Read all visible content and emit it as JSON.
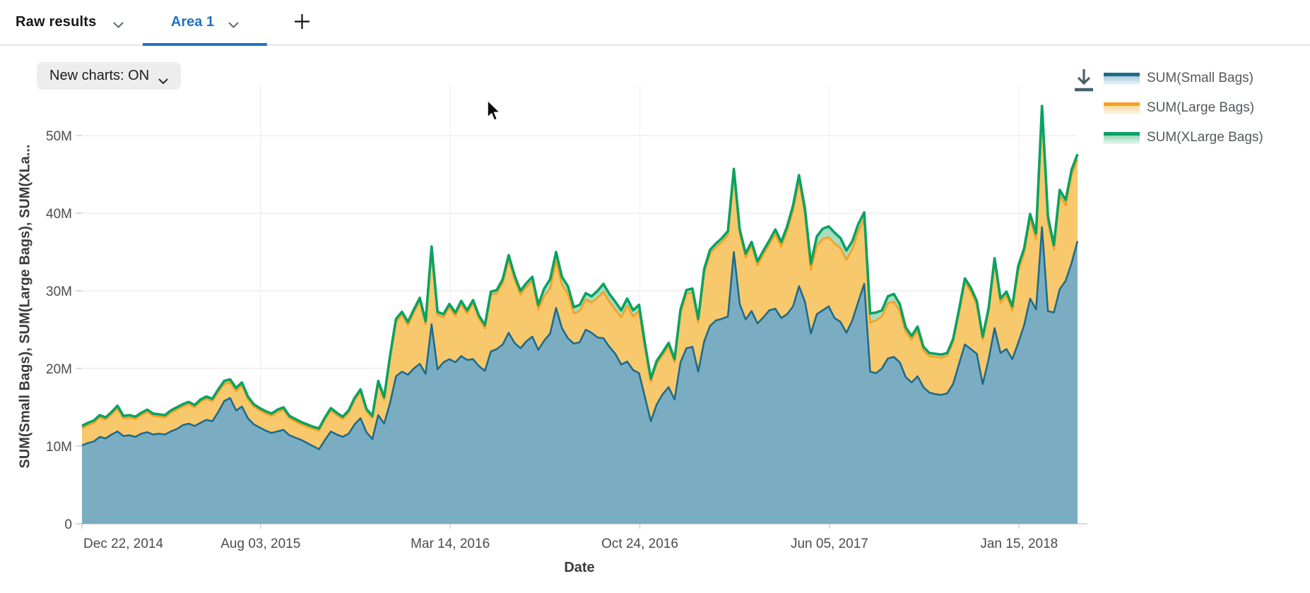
{
  "tabs": {
    "raw_results_label": "Raw results",
    "area1_label": "Area 1"
  },
  "toolbar": {
    "new_charts_label": "New charts: ON"
  },
  "icons": {
    "download": "download-icon",
    "add_tab": "plus-icon",
    "chevron": "chevron-down-icon"
  },
  "colors": {
    "accent_blue": "#2173c4",
    "grid": "#e9eaeb",
    "grid_vertical": "#f0f0f0",
    "axis_line": "#cdcdcd",
    "tick_text": "#4c4c4c",
    "axis_title": "#3b3b3b",
    "legend_text": "#55585b",
    "download_icon": "#46606d"
  },
  "chart_data": {
    "type": "area",
    "stacked": true,
    "xlabel": "Date",
    "ylabel": "SUM(Small Bags), SUM(Large Bags), SUM(XLa...",
    "unit": "millions",
    "ylim": [
      0,
      56.5
    ],
    "grid": true,
    "legend_position": "top-right",
    "y_ticks": [
      {
        "v": 0,
        "label": "0"
      },
      {
        "v": 10,
        "label": "10M"
      },
      {
        "v": 20,
        "label": "20M"
      },
      {
        "v": 30,
        "label": "30M"
      },
      {
        "v": 40,
        "label": "40M"
      },
      {
        "v": 50,
        "label": "50M"
      }
    ],
    "x_ticks": [
      {
        "week": -1.86,
        "label": "Dec 22, 2014"
      },
      {
        "week": 30.14,
        "label": "Aug 03, 2015"
      },
      {
        "week": 62.14,
        "label": "Mar 14, 2016"
      },
      {
        "week": 94.14,
        "label": "Oct 24, 2016"
      },
      {
        "week": 126.14,
        "label": "Jun 05, 2017"
      },
      {
        "week": 158.14,
        "label": "Jan 15, 2018"
      }
    ],
    "x_range_weeks": 169,
    "series": [
      {
        "name": "SUM(Small Bags)",
        "stroke": "#1c6c8e",
        "fill": "#7badc2",
        "legend_fill": "#a9cbdd",
        "values": [
          10.1,
          10.4,
          10.6,
          11.2,
          11.0,
          11.5,
          11.9,
          11.3,
          11.4,
          11.2,
          11.6,
          11.8,
          11.5,
          11.6,
          11.5,
          11.9,
          12.2,
          12.7,
          12.9,
          12.6,
          13.0,
          13.4,
          13.2,
          14.4,
          15.8,
          16.2,
          14.6,
          15.1,
          13.6,
          12.8,
          12.4,
          12.0,
          11.7,
          11.9,
          12.1,
          11.4,
          11.1,
          10.8,
          10.4,
          10.0,
          9.6,
          10.8,
          11.9,
          11.5,
          11.2,
          11.6,
          12.8,
          13.6,
          11.8,
          10.9,
          14.0,
          12.9,
          15.6,
          19.0,
          19.6,
          19.2,
          20.0,
          20.6,
          19.3,
          25.7,
          19.9,
          20.8,
          21.2,
          20.8,
          21.6,
          21.1,
          21.2,
          20.3,
          19.7,
          22.2,
          22.5,
          23.1,
          24.6,
          23.3,
          22.6,
          23.5,
          24.1,
          22.4,
          23.6,
          24.5,
          27.8,
          25.2,
          23.9,
          23.2,
          23.4,
          25.0,
          24.6,
          24.0,
          23.9,
          22.8,
          21.9,
          20.5,
          20.9,
          19.8,
          19.4,
          16.3,
          13.2,
          15.4,
          16.7,
          17.6,
          16.0,
          20.8,
          22.6,
          22.8,
          19.6,
          23.5,
          25.5,
          26.2,
          26.4,
          26.7,
          35.0,
          28.3,
          26.3,
          27.4,
          25.8,
          26.6,
          27.5,
          27.7,
          26.5,
          27.0,
          28.0,
          30.6,
          28.6,
          24.5,
          27.0,
          27.5,
          28.0,
          26.5,
          26.0,
          24.6,
          26.2,
          28.6,
          30.9,
          19.6,
          19.4,
          20.0,
          21.3,
          21.5,
          20.8,
          18.9,
          18.2,
          19.0,
          17.6,
          16.9,
          16.7,
          16.6,
          16.8,
          18.0,
          20.6,
          23.1,
          22.5,
          21.9,
          18.0,
          21.2,
          25.2,
          22.0,
          22.5,
          21.2,
          23.3,
          25.6,
          29.0,
          27.6,
          38.2,
          27.4,
          27.2,
          30.2,
          31.3,
          33.6,
          36.4
        ]
      },
      {
        "name": "SUM(Large Bags)",
        "stroke": "#f5a01f",
        "fill": "#f8c86c",
        "legend_fill": "#f8d9a0",
        "values": [
          2.2,
          2.3,
          2.4,
          2.5,
          2.4,
          2.6,
          2.9,
          2.3,
          2.3,
          2.3,
          2.4,
          2.6,
          2.4,
          2.2,
          2.2,
          2.4,
          2.5,
          2.4,
          2.5,
          2.4,
          2.7,
          2.7,
          2.6,
          2.6,
          2.2,
          2.0,
          2.5,
          2.7,
          2.5,
          2.3,
          2.2,
          2.2,
          2.2,
          2.5,
          2.6,
          2.2,
          2.1,
          2.0,
          2.1,
          2.2,
          2.4,
          2.6,
          2.7,
          2.5,
          2.3,
          2.7,
          3.1,
          3.4,
          2.7,
          2.7,
          4.0,
          3.1,
          5.7,
          7.0,
          7.3,
          6.4,
          7.2,
          8.1,
          6.4,
          9.5,
          7.0,
          5.8,
          6.7,
          6.0,
          6.7,
          6.0,
          7.2,
          6.1,
          5.5,
          7.3,
          7.2,
          7.9,
          9.5,
          8.2,
          6.9,
          7.0,
          7.2,
          5.2,
          5.7,
          5.8,
          6.0,
          5.6,
          5.7,
          3.9,
          4.0,
          3.9,
          3.9,
          5.1,
          6.0,
          5.8,
          5.7,
          6.1,
          7.2,
          6.9,
          8.0,
          6.3,
          5.1,
          5.2,
          5.0,
          5.3,
          4.8,
          6.3,
          7.0,
          7.0,
          6.3,
          8.8,
          9.3,
          9.4,
          9.9,
          10.5,
          10.1,
          9.1,
          8.0,
          8.4,
          7.5,
          8.1,
          8.5,
          9.6,
          9.2,
          10.7,
          12.3,
          13.6,
          11.3,
          8.2,
          8.8,
          9.2,
          8.9,
          9.6,
          9.5,
          9.4,
          9.2,
          9.0,
          8.4,
          6.3,
          6.8,
          6.7,
          7.1,
          7.1,
          6.6,
          5.8,
          5.5,
          5.9,
          4.7,
          4.7,
          4.8,
          4.8,
          4.8,
          5.4,
          6.5,
          8.0,
          7.4,
          6.3,
          5.7,
          6.1,
          8.5,
          6.5,
          6.9,
          6.3,
          9.3,
          9.3,
          10.2,
          9.1,
          14.8,
          11.5,
          8.1,
          12.1,
          9.7,
          11.3,
          10.5
        ]
      },
      {
        "name": "SUM(XLarge Bags)",
        "stroke": "#09a261",
        "fill": "#a7dcc1",
        "legend_fill": "#93d7b5",
        "values": [
          0.3,
          0.3,
          0.3,
          0.3,
          0.3,
          0.3,
          0.4,
          0.3,
          0.3,
          0.3,
          0.3,
          0.3,
          0.3,
          0.3,
          0.3,
          0.3,
          0.3,
          0.3,
          0.3,
          0.3,
          0.3,
          0.3,
          0.3,
          0.3,
          0.4,
          0.4,
          0.4,
          0.4,
          0.3,
          0.3,
          0.3,
          0.3,
          0.3,
          0.3,
          0.3,
          0.3,
          0.3,
          0.3,
          0.3,
          0.3,
          0.3,
          0.3,
          0.3,
          0.3,
          0.3,
          0.3,
          0.3,
          0.3,
          0.3,
          0.3,
          0.4,
          0.3,
          0.4,
          0.4,
          0.4,
          0.4,
          0.4,
          0.4,
          0.4,
          0.5,
          0.4,
          0.4,
          0.4,
          0.4,
          0.4,
          0.4,
          0.4,
          0.4,
          0.4,
          0.4,
          0.4,
          0.5,
          0.5,
          0.5,
          0.5,
          0.5,
          0.5,
          0.6,
          1.0,
          1.2,
          1.2,
          1.0,
          1.0,
          0.8,
          0.8,
          0.8,
          0.8,
          0.9,
          1.0,
          1.0,
          1.0,
          0.9,
          0.9,
          0.8,
          0.8,
          0.6,
          0.4,
          0.4,
          0.4,
          0.4,
          0.4,
          0.5,
          0.5,
          0.5,
          0.5,
          0.5,
          0.5,
          0.5,
          0.5,
          0.5,
          0.6,
          0.5,
          0.5,
          0.5,
          0.5,
          0.5,
          0.5,
          0.6,
          0.6,
          0.6,
          0.7,
          0.7,
          0.7,
          0.8,
          1.2,
          1.3,
          1.4,
          1.4,
          1.3,
          1.2,
          1.0,
          1.0,
          0.8,
          1.2,
          1.0,
          0.8,
          0.9,
          1.0,
          0.9,
          0.6,
          0.5,
          0.5,
          0.5,
          0.4,
          0.4,
          0.4,
          0.4,
          0.4,
          0.5,
          0.5,
          0.5,
          0.5,
          0.4,
          0.5,
          0.5,
          0.5,
          0.5,
          0.5,
          0.6,
          0.6,
          0.7,
          0.7,
          0.8,
          0.7,
          0.6,
          0.7,
          0.7,
          0.7,
          0.7
        ]
      }
    ]
  }
}
